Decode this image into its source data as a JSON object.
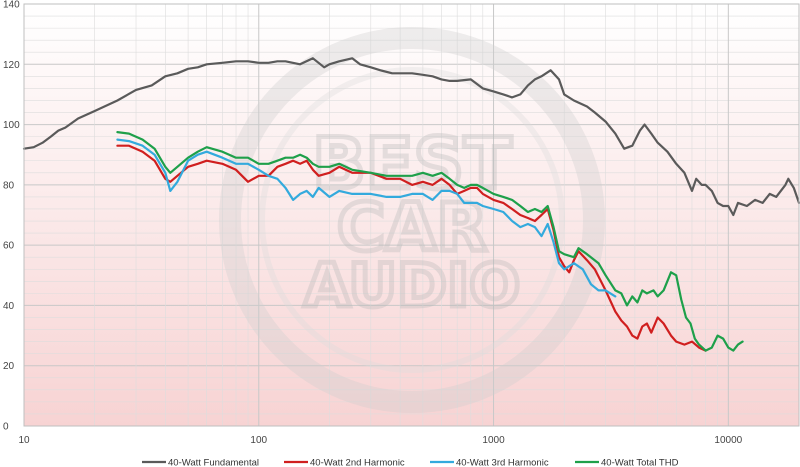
{
  "chart_data": {
    "type": "line",
    "title": "",
    "xlabel": "",
    "ylabel": "",
    "x_scale": "log",
    "xlim": [
      10,
      20000
    ],
    "ylim": [
      0,
      140
    ],
    "grid": true,
    "legend_position": "bottom",
    "background": "gradient white (top) to light pink (bottom)",
    "watermark": "BEST CAR AUDIO",
    "x_ticks": [
      10,
      100,
      1000,
      10000
    ],
    "x_tick_labels": [
      "10",
      "100",
      "1000",
      "10000"
    ],
    "y_ticks": [
      0,
      20,
      40,
      60,
      80,
      100,
      120,
      140
    ],
    "y_tick_labels": [
      "0",
      "20",
      "40",
      "60",
      "80",
      "100",
      "120",
      "140"
    ],
    "series": [
      {
        "name": "40-Watt Fundamental",
        "color": "#5a5a5a",
        "points": [
          [
            10,
            92
          ],
          [
            11,
            92.5
          ],
          [
            12,
            94
          ],
          [
            13,
            96
          ],
          [
            14,
            98
          ],
          [
            15,
            99
          ],
          [
            17,
            102
          ],
          [
            20,
            104.5
          ],
          [
            25,
            108
          ],
          [
            30,
            111.5
          ],
          [
            35,
            113
          ],
          [
            40,
            116
          ],
          [
            45,
            117
          ],
          [
            50,
            118.5
          ],
          [
            55,
            119
          ],
          [
            60,
            120
          ],
          [
            70,
            120.5
          ],
          [
            80,
            121
          ],
          [
            90,
            121
          ],
          [
            100,
            120.5
          ],
          [
            110,
            120.5
          ],
          [
            120,
            121
          ],
          [
            130,
            121
          ],
          [
            150,
            120
          ],
          [
            170,
            122
          ],
          [
            190,
            119
          ],
          [
            200,
            120
          ],
          [
            220,
            121
          ],
          [
            250,
            122
          ],
          [
            270,
            120
          ],
          [
            300,
            119
          ],
          [
            330,
            118
          ],
          [
            370,
            117
          ],
          [
            400,
            117
          ],
          [
            450,
            117
          ],
          [
            500,
            116.5
          ],
          [
            550,
            116
          ],
          [
            600,
            115
          ],
          [
            650,
            114.5
          ],
          [
            700,
            114.5
          ],
          [
            800,
            115
          ],
          [
            900,
            112
          ],
          [
            1000,
            111
          ],
          [
            1100,
            110
          ],
          [
            1200,
            109
          ],
          [
            1300,
            110
          ],
          [
            1400,
            113
          ],
          [
            1500,
            115
          ],
          [
            1600,
            116
          ],
          [
            1750,
            118
          ],
          [
            1900,
            115
          ],
          [
            2000,
            110
          ],
          [
            2200,
            108
          ],
          [
            2500,
            106
          ],
          [
            2700,
            104
          ],
          [
            3000,
            101
          ],
          [
            3300,
            97
          ],
          [
            3600,
            92
          ],
          [
            3900,
            93
          ],
          [
            4200,
            98
          ],
          [
            4400,
            100
          ],
          [
            4700,
            97
          ],
          [
            5000,
            94
          ],
          [
            5500,
            91
          ],
          [
            6000,
            87
          ],
          [
            6500,
            84
          ],
          [
            7000,
            78
          ],
          [
            7300,
            82
          ],
          [
            7700,
            80
          ],
          [
            8000,
            80
          ],
          [
            8500,
            78
          ],
          [
            9000,
            74
          ],
          [
            9500,
            73
          ],
          [
            10000,
            73
          ],
          [
            10500,
            70
          ],
          [
            11000,
            74
          ],
          [
            12000,
            73
          ],
          [
            13000,
            75
          ],
          [
            14000,
            74
          ],
          [
            15000,
            77
          ],
          [
            16000,
            76
          ],
          [
            17500,
            80
          ],
          [
            18000,
            82
          ],
          [
            19000,
            79
          ],
          [
            20000,
            74
          ]
        ]
      },
      {
        "name": "40-Watt 2nd Harmonic",
        "color": "#d01f1f",
        "points": [
          [
            25,
            93
          ],
          [
            28,
            93
          ],
          [
            32,
            91
          ],
          [
            36,
            88
          ],
          [
            40,
            82
          ],
          [
            42,
            81
          ],
          [
            45,
            83
          ],
          [
            50,
            86
          ],
          [
            55,
            87
          ],
          [
            60,
            88
          ],
          [
            70,
            87
          ],
          [
            80,
            85
          ],
          [
            90,
            81
          ],
          [
            100,
            83
          ],
          [
            110,
            83
          ],
          [
            120,
            86
          ],
          [
            130,
            87
          ],
          [
            140,
            88
          ],
          [
            150,
            87
          ],
          [
            160,
            88
          ],
          [
            170,
            85
          ],
          [
            180,
            83
          ],
          [
            200,
            84
          ],
          [
            220,
            86
          ],
          [
            250,
            84
          ],
          [
            300,
            84
          ],
          [
            350,
            82
          ],
          [
            400,
            82
          ],
          [
            450,
            80
          ],
          [
            500,
            81
          ],
          [
            550,
            80
          ],
          [
            600,
            82
          ],
          [
            650,
            80
          ],
          [
            700,
            77
          ],
          [
            750,
            78
          ],
          [
            800,
            79
          ],
          [
            850,
            79
          ],
          [
            900,
            77
          ],
          [
            1000,
            75
          ],
          [
            1100,
            74
          ],
          [
            1200,
            72
          ],
          [
            1300,
            70
          ],
          [
            1400,
            69
          ],
          [
            1500,
            68
          ],
          [
            1600,
            70
          ],
          [
            1700,
            72
          ],
          [
            1800,
            65
          ],
          [
            1900,
            56
          ],
          [
            2000,
            53
          ],
          [
            2100,
            51
          ],
          [
            2200,
            55
          ],
          [
            2300,
            58
          ],
          [
            2500,
            55
          ],
          [
            2700,
            52
          ],
          [
            3000,
            45
          ],
          [
            3300,
            38
          ],
          [
            3500,
            35
          ],
          [
            3700,
            33
          ],
          [
            3900,
            30
          ],
          [
            4100,
            29
          ],
          [
            4300,
            33
          ],
          [
            4500,
            34
          ],
          [
            4700,
            31
          ],
          [
            5000,
            36
          ],
          [
            5300,
            34
          ],
          [
            5700,
            30
          ],
          [
            6000,
            28
          ],
          [
            6500,
            27
          ],
          [
            7000,
            28
          ],
          [
            7500,
            26
          ],
          [
            8000,
            25
          ]
        ]
      },
      {
        "name": "40-Watt 3rd Harmonic",
        "color": "#33aadd",
        "points": [
          [
            25,
            95
          ],
          [
            28,
            94.5
          ],
          [
            32,
            93
          ],
          [
            36,
            90
          ],
          [
            40,
            84
          ],
          [
            42,
            78
          ],
          [
            45,
            81
          ],
          [
            50,
            88
          ],
          [
            55,
            90
          ],
          [
            60,
            91
          ],
          [
            70,
            89
          ],
          [
            80,
            87
          ],
          [
            90,
            87
          ],
          [
            100,
            85
          ],
          [
            110,
            83
          ],
          [
            120,
            82
          ],
          [
            130,
            79
          ],
          [
            140,
            75
          ],
          [
            150,
            77
          ],
          [
            160,
            78
          ],
          [
            170,
            76
          ],
          [
            180,
            79
          ],
          [
            200,
            76
          ],
          [
            220,
            78
          ],
          [
            250,
            77
          ],
          [
            300,
            77
          ],
          [
            350,
            76
          ],
          [
            400,
            76
          ],
          [
            450,
            77
          ],
          [
            500,
            77
          ],
          [
            550,
            75
          ],
          [
            600,
            78
          ],
          [
            650,
            78
          ],
          [
            700,
            77
          ],
          [
            750,
            74
          ],
          [
            800,
            74
          ],
          [
            850,
            74
          ],
          [
            900,
            73
          ],
          [
            1000,
            72
          ],
          [
            1100,
            71
          ],
          [
            1200,
            68
          ],
          [
            1300,
            66
          ],
          [
            1400,
            67
          ],
          [
            1500,
            66
          ],
          [
            1600,
            63
          ],
          [
            1700,
            67
          ],
          [
            1800,
            61
          ],
          [
            1900,
            54
          ],
          [
            2000,
            52
          ],
          [
            2200,
            54
          ],
          [
            2400,
            52
          ],
          [
            2600,
            47
          ],
          [
            2800,
            45
          ],
          [
            3000,
            45
          ],
          [
            3300,
            43
          ]
        ]
      },
      {
        "name": "40-Watt Total THD",
        "color": "#1ea04a",
        "points": [
          [
            25,
            97.5
          ],
          [
            28,
            97
          ],
          [
            32,
            95
          ],
          [
            36,
            92
          ],
          [
            40,
            86
          ],
          [
            42,
            84
          ],
          [
            45,
            86
          ],
          [
            50,
            89
          ],
          [
            55,
            91
          ],
          [
            60,
            92.5
          ],
          [
            70,
            91
          ],
          [
            80,
            89
          ],
          [
            90,
            89
          ],
          [
            100,
            87
          ],
          [
            110,
            87
          ],
          [
            120,
            88
          ],
          [
            130,
            89
          ],
          [
            140,
            89
          ],
          [
            150,
            90
          ],
          [
            160,
            89
          ],
          [
            170,
            87
          ],
          [
            180,
            86
          ],
          [
            200,
            86
          ],
          [
            220,
            87
          ],
          [
            250,
            85
          ],
          [
            300,
            84
          ],
          [
            350,
            83
          ],
          [
            400,
            83
          ],
          [
            450,
            83
          ],
          [
            500,
            84
          ],
          [
            550,
            83
          ],
          [
            600,
            84
          ],
          [
            650,
            82
          ],
          [
            700,
            80
          ],
          [
            750,
            79
          ],
          [
            800,
            80
          ],
          [
            850,
            80
          ],
          [
            900,
            79
          ],
          [
            1000,
            77
          ],
          [
            1100,
            76
          ],
          [
            1200,
            75
          ],
          [
            1300,
            73
          ],
          [
            1400,
            71
          ],
          [
            1500,
            72
          ],
          [
            1600,
            71
          ],
          [
            1700,
            73
          ],
          [
            1800,
            66
          ],
          [
            1900,
            58
          ],
          [
            2000,
            57
          ],
          [
            2200,
            56
          ],
          [
            2300,
            59
          ],
          [
            2500,
            57
          ],
          [
            2800,
            54
          ],
          [
            3000,
            50
          ],
          [
            3300,
            45
          ],
          [
            3500,
            44
          ],
          [
            3700,
            40
          ],
          [
            3900,
            43
          ],
          [
            4100,
            41
          ],
          [
            4300,
            45
          ],
          [
            4500,
            44
          ],
          [
            4800,
            45
          ],
          [
            5000,
            43
          ],
          [
            5300,
            45
          ],
          [
            5700,
            51
          ],
          [
            6000,
            50
          ],
          [
            6300,
            42
          ],
          [
            6600,
            36
          ],
          [
            6900,
            34
          ],
          [
            7200,
            29
          ],
          [
            7500,
            27
          ],
          [
            8000,
            25
          ],
          [
            8500,
            26
          ],
          [
            9000,
            30
          ],
          [
            9500,
            29
          ],
          [
            10000,
            26
          ],
          [
            10500,
            25
          ],
          [
            11000,
            27
          ],
          [
            11500,
            28
          ]
        ]
      }
    ]
  }
}
